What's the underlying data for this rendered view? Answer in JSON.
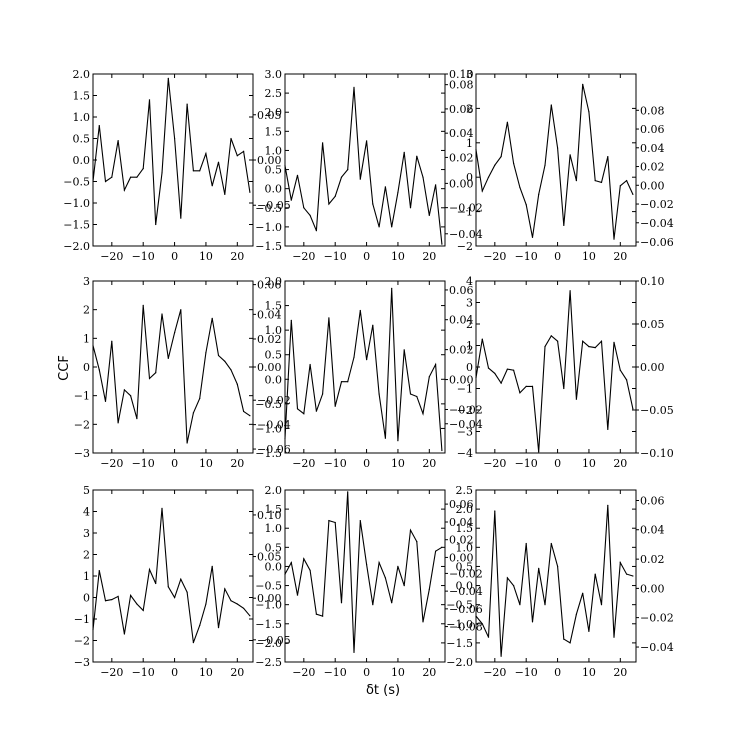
{
  "figure": {
    "ylabel": "CCF",
    "xlabel": "δt (s)",
    "line_color": "#000000",
    "background": "#ffffff"
  },
  "chart_data": [
    {
      "type": "line",
      "xlim": [
        -26,
        25
      ],
      "ylim": [
        -2,
        2
      ],
      "y_ticks": [
        -2.0,
        -1.5,
        -1.0,
        -0.5,
        0.0,
        0.5,
        1.0,
        1.5,
        2.0
      ],
      "y_tick_labels": [
        "−2.0",
        "−1.5",
        "−1.0",
        "−0.5",
        "0.0",
        "0.5",
        "1.0",
        "1.5",
        "2.0"
      ],
      "x_ticks": [
        -20,
        -10,
        0,
        10,
        20
      ],
      "x_tick_labels": [
        "−20",
        "−10",
        "0",
        "10",
        "20"
      ],
      "y2_ticks": [
        -0.05,
        0.0,
        0.05
      ],
      "y2_tick_labels": [
        "−0.05",
        "0.00",
        "0.05"
      ],
      "y2_ticks_axis_frac": [
        0.237,
        0.5,
        0.763
      ],
      "x": [
        -26,
        -24,
        -22,
        -20,
        -18,
        -16,
        -14,
        -12,
        -10,
        -8,
        -6,
        -4,
        -2,
        0,
        2,
        4,
        6,
        8,
        10,
        12,
        14,
        16,
        18,
        20,
        22,
        24
      ],
      "y": [
        -0.5,
        0.8,
        -0.5,
        -0.4,
        0.45,
        -0.7,
        -0.4,
        -0.4,
        -0.2,
        1.4,
        -1.5,
        -0.3,
        1.9,
        0.5,
        -1.35,
        1.3,
        -0.25,
        -0.25,
        0.15,
        -0.6,
        -0.05,
        -0.8,
        0.5,
        0.1,
        0.2,
        -0.75
      ]
    },
    {
      "type": "line",
      "xlim": [
        -26,
        25
      ],
      "ylim": [
        -1.5,
        3.0
      ],
      "y_ticks": [
        -1.5,
        -1.0,
        -0.5,
        0.0,
        0.5,
        1.0,
        1.5,
        2.0,
        2.5,
        3.0
      ],
      "y_tick_labels": [
        "−1.5",
        "−1.0",
        "−0.5",
        "0.0",
        "0.5",
        "1.0",
        "1.5",
        "2.0",
        "2.5",
        "3.0"
      ],
      "x_ticks": [
        -20,
        -10,
        0,
        10,
        20
      ],
      "x_tick_labels": [
        "−20",
        "−10",
        "0",
        "10",
        "20"
      ],
      "y2_ticks": [
        -0.04,
        -0.02,
        0.0,
        0.02,
        0.04,
        0.06,
        0.08,
        0.1
      ],
      "y2_tick_labels": [
        "−0.04",
        "−0.02",
        "0.00",
        "0.02",
        "0.04",
        "0.06",
        "0.08",
        "0.10"
      ],
      "y2_ticks_axis_frac": [
        0.071,
        0.223,
        0.364,
        0.515,
        0.656,
        0.797,
        0.938,
        1.0
      ],
      "x": [
        -26,
        -24,
        -22,
        -20,
        -18,
        -16,
        -14,
        -12,
        -10,
        -8,
        -6,
        -4,
        -2,
        0,
        2,
        4,
        6,
        8,
        10,
        12,
        14,
        16,
        18,
        20,
        22,
        24
      ],
      "y": [
        0.6,
        -0.3,
        0.35,
        -0.5,
        -0.7,
        -1.1,
        1.2,
        -0.4,
        -0.2,
        0.3,
        0.5,
        2.65,
        0.25,
        1.25,
        -0.4,
        -1.0,
        0.05,
        -1.0,
        -0.1,
        0.95,
        -0.5,
        0.85,
        0.3,
        -0.7,
        0.1,
        -1.45
      ]
    },
    {
      "type": "line",
      "xlim": [
        -26,
        25
      ],
      "ylim": [
        -2,
        3
      ],
      "y_ticks": [
        -2,
        -1,
        0,
        1,
        2,
        3
      ],
      "y_tick_labels": [
        "−2",
        "−1",
        "0",
        "1",
        "2",
        "3"
      ],
      "x_ticks": [
        -20,
        -10,
        0,
        10,
        20
      ],
      "x_tick_labels": [
        "−20",
        "−10",
        "0",
        "10",
        "20"
      ],
      "y2_ticks": [
        -0.06,
        -0.04,
        -0.02,
        0.0,
        0.02,
        0.04,
        0.06,
        0.08
      ],
      "y2_tick_labels": [
        "−0.06",
        "−0.04",
        "−0.02",
        "0.00",
        "0.02",
        "0.04",
        "0.06",
        "0.08"
      ],
      "y2_ticks_axis_frac": [
        0.023,
        0.135,
        0.244,
        0.353,
        0.462,
        0.571,
        0.68,
        0.789
      ],
      "x": [
        -26,
        -24,
        -22,
        -20,
        -18,
        -16,
        -14,
        -12,
        -10,
        -8,
        -6,
        -4,
        -2,
        0,
        2,
        4,
        6,
        8,
        10,
        12,
        14,
        16,
        18,
        20,
        22,
        24
      ],
      "y": [
        0.8,
        -0.4,
        0.0,
        0.35,
        0.6,
        1.6,
        0.4,
        -0.3,
        -0.8,
        -1.75,
        -0.5,
        0.35,
        2.1,
        0.85,
        -1.4,
        0.65,
        -0.1,
        2.7,
        1.9,
        -0.1,
        -0.15,
        0.6,
        -1.8,
        -0.25,
        -0.1,
        -0.5
      ]
    },
    {
      "type": "line",
      "xlim": [
        -26,
        25
      ],
      "ylim": [
        -3,
        3
      ],
      "y_ticks": [
        -3,
        -2,
        -1,
        0,
        1,
        2,
        3
      ],
      "y_tick_labels": [
        "−3",
        "−2",
        "−1",
        "0",
        "1",
        "2",
        "3"
      ],
      "x_ticks": [
        -20,
        -10,
        0,
        10,
        20
      ],
      "x_tick_labels": [
        "−20",
        "−10",
        "0",
        "10",
        "20"
      ],
      "y2_ticks": [
        -0.06,
        -0.04,
        -0.02,
        0.0,
        0.02,
        0.04,
        0.06
      ],
      "y2_tick_labels": [
        "−0.06",
        "−0.04",
        "−0.02",
        "0.00",
        "0.02",
        "0.04",
        "0.06"
      ],
      "y2_ticks_axis_frac": [
        0.023,
        0.165,
        0.307,
        0.5,
        0.663,
        0.806,
        0.979
      ],
      "x": [
        -26,
        -24,
        -22,
        -20,
        -18,
        -16,
        -14,
        -12,
        -10,
        -8,
        -6,
        -4,
        -2,
        0,
        2,
        4,
        6,
        8,
        10,
        12,
        14,
        16,
        18,
        20,
        22,
        24
      ],
      "y": [
        0.75,
        -0.1,
        -1.2,
        0.9,
        -1.95,
        -0.8,
        -1.0,
        -1.8,
        2.15,
        -0.4,
        -0.2,
        1.85,
        0.3,
        1.2,
        2.0,
        -2.65,
        -1.6,
        -1.1,
        0.5,
        1.7,
        0.4,
        0.2,
        -0.1,
        -0.6,
        -1.55,
        -1.7
      ]
    },
    {
      "type": "line",
      "xlim": [
        -26,
        25
      ],
      "ylim": [
        -1.5,
        2.0
      ],
      "y_ticks": [
        -1.5,
        -1.0,
        -0.5,
        0.0,
        0.5,
        1.0,
        1.5,
        2.0
      ],
      "y_tick_labels": [
        "−1.5",
        "−1.0",
        "−0.5",
        "0.0",
        "0.5",
        "1.0",
        "1.5",
        "2.0"
      ],
      "x_ticks": [
        -20,
        -10,
        0,
        10,
        20
      ],
      "x_tick_labels": [
        "−20",
        "−10",
        "0",
        "10",
        "20"
      ],
      "y2_ticks": [
        -0.04,
        -0.02,
        0.0,
        0.02,
        0.04,
        0.06
      ],
      "y2_tick_labels": [
        "−0.04",
        "−0.02",
        "0.00",
        "0.02",
        "0.04",
        "0.06"
      ],
      "y2_ticks_axis_frac": [
        0.17,
        0.253,
        0.427,
        0.601,
        0.775,
        0.948
      ],
      "x": [
        -26,
        -24,
        -22,
        -20,
        -18,
        -16,
        -14,
        -12,
        -10,
        -8,
        -6,
        -4,
        -2,
        0,
        2,
        4,
        6,
        8,
        10,
        12,
        14,
        16,
        18,
        20,
        22,
        24
      ],
      "y": [
        -1.2,
        1.2,
        -0.6,
        -0.7,
        0.3,
        -0.65,
        -0.3,
        1.25,
        -0.55,
        -0.05,
        -0.05,
        0.45,
        1.4,
        0.4,
        1.1,
        -0.3,
        -1.2,
        1.85,
        -1.25,
        0.6,
        -0.3,
        -0.35,
        -0.7,
        0.05,
        0.3,
        -1.45
      ]
    },
    {
      "type": "line",
      "xlim": [
        -26,
        25
      ],
      "ylim": [
        -4,
        4
      ],
      "y_ticks": [
        -4,
        -3,
        -2,
        -1,
        0,
        1,
        2,
        3,
        4
      ],
      "y_tick_labels": [
        "−4",
        "−3",
        "−2",
        "−1",
        "0",
        "1",
        "2",
        "3",
        "4"
      ],
      "x_ticks": [
        -20,
        -10,
        0,
        10,
        20
      ],
      "x_tick_labels": [
        "−20",
        "−10",
        "0",
        "10",
        "20"
      ],
      "y2_ticks": [
        -0.1,
        -0.05,
        0.0,
        0.05,
        0.1
      ],
      "y2_tick_labels": [
        "−0.10",
        "−0.05",
        "0.00",
        "0.05",
        "0.10"
      ],
      "y2_ticks_axis_frac": [
        0.0,
        0.25,
        0.5,
        0.75,
        1.0
      ],
      "x": [
        -26,
        -24,
        -22,
        -20,
        -18,
        -16,
        -14,
        -12,
        -10,
        -8,
        -6,
        -4,
        -2,
        0,
        2,
        4,
        6,
        8,
        10,
        12,
        14,
        16,
        18,
        20,
        22,
        24
      ],
      "y": [
        -0.5,
        1.3,
        -0.05,
        -0.3,
        -0.75,
        -0.1,
        -0.15,
        -1.2,
        -0.9,
        -0.9,
        -3.95,
        0.95,
        1.45,
        1.2,
        -1.0,
        3.55,
        -1.5,
        1.2,
        0.95,
        0.9,
        1.2,
        -2.9,
        1.15,
        -0.15,
        -0.6,
        -1.95
      ]
    },
    {
      "type": "line",
      "xlim": [
        -26,
        25
      ],
      "ylim": [
        -3,
        5
      ],
      "y_ticks": [
        -3,
        -2,
        -1,
        0,
        1,
        2,
        3,
        4,
        5
      ],
      "y_tick_labels": [
        "−3",
        "−2",
        "−1",
        "0",
        "1",
        "2",
        "3",
        "4",
        "5"
      ],
      "x_ticks": [
        -20,
        -10,
        0,
        10,
        20
      ],
      "x_tick_labels": [
        "−20",
        "−10",
        "0",
        "10",
        "20"
      ],
      "y2_ticks": [
        -0.05,
        0.0,
        0.05,
        0.1
      ],
      "y2_tick_labels": [
        "−0.05",
        "0.00",
        "0.05",
        "0.10"
      ],
      "y2_ticks_axis_frac": [
        0.129,
        0.371,
        0.613,
        0.855
      ],
      "x": [
        -26,
        -24,
        -22,
        -20,
        -18,
        -16,
        -14,
        -12,
        -10,
        -8,
        -6,
        -4,
        -2,
        0,
        2,
        4,
        6,
        8,
        10,
        12,
        14,
        16,
        18,
        20,
        22,
        24
      ],
      "y": [
        -1.5,
        1.25,
        -0.15,
        -0.1,
        0.05,
        -1.7,
        0.1,
        -0.3,
        -0.6,
        1.3,
        0.65,
        4.15,
        0.5,
        0.0,
        0.85,
        0.25,
        -2.1,
        -1.3,
        -0.3,
        1.45,
        -1.4,
        0.4,
        -0.15,
        -0.3,
        -0.5,
        -0.85
      ]
    },
    {
      "type": "line",
      "xlim": [
        -26,
        25
      ],
      "ylim": [
        -2.5,
        2.0
      ],
      "y_ticks": [
        -2.5,
        -2.0,
        -1.5,
        -1.0,
        -0.5,
        0.0,
        0.5,
        1.0,
        1.5,
        2.0
      ],
      "y_tick_labels": [
        "−2.5",
        "−2.0",
        "−1.5",
        "−1.0",
        "−0.5",
        "0.0",
        "0.5",
        "1.0",
        "1.5",
        "2.0"
      ],
      "x_ticks": [
        -20,
        -10,
        0,
        10,
        20
      ],
      "x_tick_labels": [
        "−20",
        "−10",
        "0",
        "10",
        "20"
      ],
      "y2_ticks": [
        -0.08,
        -0.06,
        -0.04,
        -0.02,
        0.0,
        0.02,
        0.04,
        0.06
      ],
      "y2_tick_labels": [
        "−0.08",
        "−0.06",
        "−0.04",
        "−0.02",
        "0.00",
        "0.02",
        "0.04",
        "0.06"
      ],
      "y2_ticks_axis_frac": [
        0.206,
        0.309,
        0.412,
        0.515,
        0.608,
        0.711,
        0.814,
        0.918
      ],
      "x": [
        -26,
        -24,
        -22,
        -20,
        -18,
        -16,
        -14,
        -12,
        -10,
        -8,
        -6,
        -4,
        -2,
        0,
        2,
        4,
        6,
        8,
        10,
        12,
        14,
        16,
        18,
        20,
        22,
        24
      ],
      "y": [
        -0.2,
        0.1,
        -0.75,
        0.2,
        -0.1,
        -1.25,
        -1.3,
        1.2,
        1.15,
        -0.95,
        1.95,
        -2.25,
        1.2,
        0.05,
        -1.0,
        0.1,
        -0.3,
        -0.95,
        0.0,
        -0.5,
        0.95,
        0.65,
        -1.45,
        -0.6,
        0.4,
        0.5
      ]
    },
    {
      "type": "line",
      "xlim": [
        -26,
        25
      ],
      "ylim": [
        -2.0,
        2.5
      ],
      "y_ticks": [
        -2.0,
        -1.5,
        -1.0,
        -0.5,
        0.0,
        0.5,
        1.0,
        1.5,
        2.0,
        2.5
      ],
      "y_tick_labels": [
        "−2.0",
        "−1.5",
        "−1.0",
        "−0.5",
        "0.0",
        "0.5",
        "1.0",
        "1.5",
        "2.0",
        "2.5"
      ],
      "x_ticks": [
        -20,
        -10,
        0,
        10,
        20
      ],
      "x_tick_labels": [
        "−20",
        "−10",
        "0",
        "10",
        "20"
      ],
      "y2_ticks": [
        -0.04,
        -0.02,
        0.0,
        0.02,
        0.04,
        0.06
      ],
      "y2_tick_labels": [
        "−0.04",
        "−0.02",
        "0.00",
        "0.02",
        "0.04",
        "0.06"
      ],
      "y2_ticks_axis_frac": [
        0.087,
        0.258,
        0.428,
        0.598,
        0.769,
        0.939
      ],
      "x": [
        -26,
        -24,
        -22,
        -20,
        -18,
        -16,
        -14,
        -12,
        -10,
        -8,
        -6,
        -4,
        -2,
        0,
        2,
        4,
        6,
        8,
        10,
        12,
        14,
        16,
        18,
        20,
        22,
        24
      ],
      "y": [
        -0.8,
        -1.0,
        -1.35,
        1.95,
        -1.85,
        0.2,
        0.0,
        -0.5,
        1.1,
        -0.95,
        0.45,
        -0.5,
        1.1,
        0.5,
        -1.4,
        -1.5,
        -0.75,
        -0.2,
        -1.2,
        0.3,
        -0.5,
        2.1,
        -1.35,
        0.6,
        0.3,
        0.25
      ]
    }
  ]
}
